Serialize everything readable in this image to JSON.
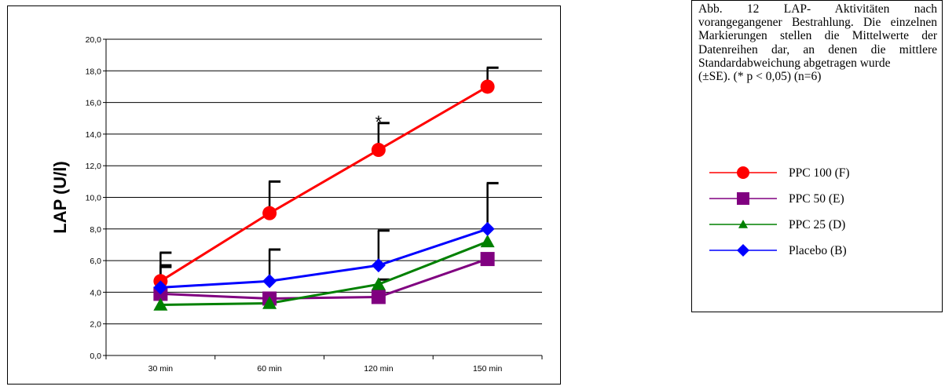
{
  "chart_data": {
    "type": "line",
    "title": "",
    "xlabel": "",
    "ylabel": "LAP  (U/l)",
    "categories": [
      "30 min",
      "60 min",
      "120 min",
      "150 min"
    ],
    "ylim": [
      0,
      20
    ],
    "yticks": [
      "0,0",
      "2,0",
      "4,0",
      "6,0",
      "8,0",
      "10,0",
      "12,0",
      "14,0",
      "16,0",
      "18,0",
      "20,0"
    ],
    "grid": true,
    "legend_placement": "right",
    "significance_mark": {
      "category": "120 min",
      "series": "PPC 100 (F)",
      "text": "*"
    },
    "series": [
      {
        "name": "PPC 100 (F)",
        "color": "#ff0000",
        "marker": "circle",
        "values": [
          4.7,
          9.0,
          13.0,
          17.0
        ],
        "errors": [
          1.8,
          2.0,
          1.7,
          1.2
        ]
      },
      {
        "name": "PPC 50  (E)",
        "color": "#800080",
        "marker": "square",
        "values": [
          3.9,
          3.6,
          3.7,
          6.1
        ],
        "errors": [
          1.8,
          0,
          1.1,
          0
        ]
      },
      {
        "name": "PPC 25  (D)",
        "color": "#008000",
        "marker": "triangle",
        "values": [
          3.2,
          3.3,
          4.5,
          7.2
        ],
        "errors": [
          0,
          0,
          0,
          0
        ]
      },
      {
        "name": "Placebo  (B)",
        "color": "#0000ff",
        "marker": "diamond",
        "values": [
          4.3,
          4.7,
          5.7,
          8.0
        ],
        "errors": [
          1.3,
          2.0,
          2.2,
          2.9
        ]
      }
    ]
  },
  "caption": {
    "main": "Abb. 12 LAP- Aktivitäten nach vorangegangener Bestrahlung. Die einzelnen Markierungen stellen die Mittelwerte der Datenreihen dar, an denen die mittlere Standardabweichung abgetragen wurde",
    "stats": "(±SE). (* p < 0,05)  (n=6)"
  },
  "legend": [
    {
      "label": "PPC 100 (F)",
      "color": "#ff0000",
      "marker": "circle"
    },
    {
      "label": "PPC 50  (E)",
      "color": "#800080",
      "marker": "square"
    },
    {
      "label": "PPC 25  (D)",
      "color": "#008000",
      "marker": "triangle"
    },
    {
      "label": "Placebo  (B)",
      "color": "#0000ff",
      "marker": "diamond"
    }
  ]
}
